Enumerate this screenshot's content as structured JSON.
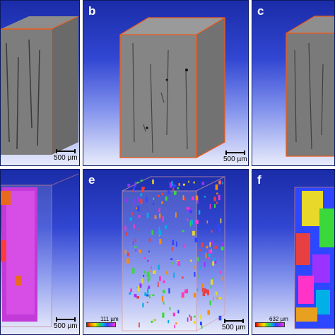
{
  "panels": {
    "b": {
      "letter": "b",
      "scale": "500 µm"
    },
    "c": {
      "letter": "c",
      "scale": ""
    },
    "a": {
      "scale": "500 µm"
    },
    "e": {
      "letter": "e",
      "scale": "500 µm",
      "colorbar": "111 µm"
    },
    "f": {
      "letter": "f",
      "colorbar": "632 µm"
    },
    "d": {
      "scale": "500 µm"
    }
  },
  "colors": {
    "frame": "#f05a1a",
    "background_top": "#1a2ca8",
    "background_bottom": "#e9ecfb"
  }
}
